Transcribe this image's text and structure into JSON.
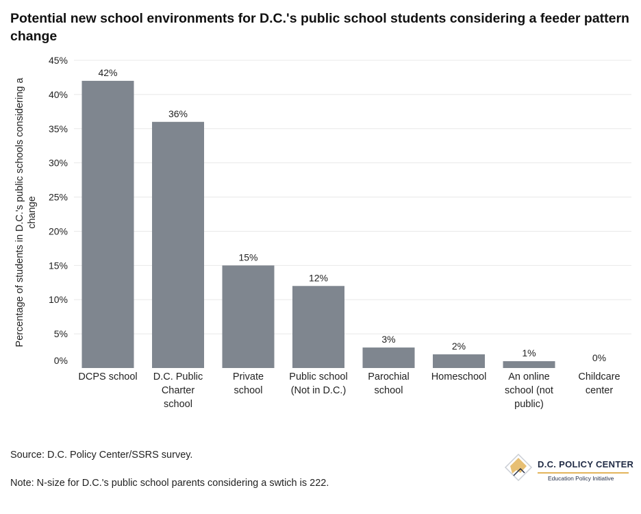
{
  "title": "Potential new school environments for D.C.'s public school students considering a feeder pattern change",
  "source": "Source: D.C. Policy Center/SSRS survey.",
  "note": "Note: N-size for D.C.'s public school parents considering a swtich is 222.",
  "logo": {
    "name": "D.C. POLICY CENTER",
    "subtitle": "Education Policy Initiative"
  },
  "colors": {
    "bar": "#7f868f",
    "grid": "#e8e8e8",
    "logo_accent": "#e3b45a"
  },
  "chart_data": {
    "type": "bar",
    "categories": [
      [
        "DCPS school"
      ],
      [
        "D.C. Public",
        "Charter",
        "school"
      ],
      [
        "Private",
        "school"
      ],
      [
        "Public school",
        "(Not in D.C.)"
      ],
      [
        "Parochial",
        "school"
      ],
      [
        "Homeschool"
      ],
      [
        "An online",
        "school (not",
        "public)"
      ],
      [
        "Childcare",
        "center"
      ]
    ],
    "values": [
      42,
      36,
      15,
      12,
      3,
      2,
      1,
      0
    ],
    "data_labels": [
      "42%",
      "36%",
      "15%",
      "12%",
      "3%",
      "2%",
      "1%",
      "0%"
    ],
    "ylabel": [
      "Percentage of students in D.C.'s public schools considering a",
      "change"
    ],
    "ylim": [
      0,
      45
    ],
    "yticks": [
      0,
      5,
      10,
      15,
      20,
      25,
      30,
      35,
      40,
      45
    ],
    "ytick_labels": [
      "0%",
      "5%",
      "10%",
      "15%",
      "20%",
      "25%",
      "30%",
      "35%",
      "40%",
      "45%"
    ],
    "grid": true,
    "legend": "none"
  }
}
